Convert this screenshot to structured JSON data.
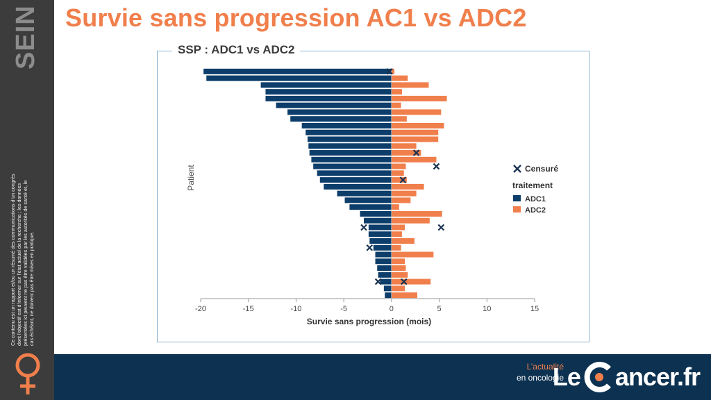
{
  "side_label": "SEIN",
  "disclaimer": "Ce contenu est un rapport et/ou un résumé des communications d’un congrès dont l’objectif est d’informer sur l’état actuel de la recherche ; les données présentées ici peuvent ne pas être validées par les autorités de santé et, le cas échéant, ne doivent pas être mises en pratique.",
  "title": "Survie sans progression AC1 vs ADC2",
  "footer": {
    "tagline_line1": "L’actualité",
    "tagline_line2": "en oncologie",
    "logo_left": "Le",
    "logo_right": "ancer.fr"
  },
  "colors": {
    "adc1": "#0d3e6b",
    "adc2": "#f07f4c",
    "title": "#f07f4c",
    "footer": "#0d3251",
    "sidebar": "#3c3c3c"
  },
  "chart_data": {
    "type": "bar",
    "orientation": "horizontal-diverging",
    "title": "SSP : ADC1 vs ADC2",
    "xlabel": "Survie sans progression (mois)",
    "ylabel": "Patient",
    "xlim": [
      -20,
      15
    ],
    "xticks": [
      -20,
      -15,
      -10,
      -5,
      0,
      5,
      10,
      15
    ],
    "legend": {
      "position": "right",
      "censored_label": "Censuré",
      "group_title": "traitement"
    },
    "series": [
      {
        "name": "ADC1",
        "color": "#0d3e6b",
        "values": [
          -19.7,
          -19.4,
          -13.7,
          -13.2,
          -13.2,
          -12.1,
          -10.9,
          -10.6,
          -9.4,
          -9.0,
          -8.8,
          -8.7,
          -8.6,
          -8.4,
          -8.2,
          -7.8,
          -7.5,
          -7.1,
          -5.7,
          -4.9,
          -4.4,
          -3.3,
          -2.9,
          -2.4,
          -2.4,
          -2.3,
          -1.9,
          -1.7,
          -1.7,
          -1.5,
          -1.4,
          -1.2,
          -0.8,
          -0.7
        ]
      },
      {
        "name": "ADC2",
        "color": "#f07f4c",
        "values": [
          0.3,
          1.7,
          3.9,
          1.1,
          5.8,
          1.0,
          5.2,
          1.6,
          5.5,
          4.9,
          4.9,
          2.6,
          3.1,
          4.7,
          1.5,
          1.3,
          1.6,
          3.4,
          2.6,
          2.0,
          0.8,
          5.3,
          4.0,
          1.4,
          1.1,
          2.4,
          1.0,
          4.4,
          1.4,
          1.5,
          1.7,
          4.1,
          1.4,
          2.7
        ]
      }
    ],
    "censored": [
      {
        "patient": 1,
        "value": -0.2
      },
      {
        "patient": 13,
        "value": 2.6
      },
      {
        "patient": 15,
        "value": 4.7
      },
      {
        "patient": 17,
        "value": 1.2
      },
      {
        "patient": 24,
        "value": -2.9
      },
      {
        "patient": 24,
        "value": 5.2
      },
      {
        "patient": 27,
        "value": -2.3
      },
      {
        "patient": 32,
        "value": -1.4
      },
      {
        "patient": 32,
        "value": 1.3
      }
    ]
  }
}
